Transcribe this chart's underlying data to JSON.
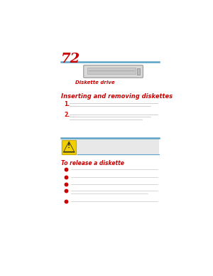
{
  "bg_color": "#ffffff",
  "page_num": "72",
  "page_num_color": "#cc0000",
  "separator_color": "#5ba3c9",
  "label_drive": "Diskette drive",
  "label_drive_color": "#cc0000",
  "section_title_1": "Inserting and removing diskettes",
  "section_title_1_color": "#cc0000",
  "num_items": [
    "1.",
    "2."
  ],
  "num_color": "#cc0000",
  "caution_bg": "#e8e8e8",
  "caution_title": "To release a diskette",
  "caution_color": "#cc0000",
  "bullet_color": "#cc0000",
  "text_color": "#222222",
  "drive_face": "#d8d8d8",
  "drive_edge": "#999999"
}
